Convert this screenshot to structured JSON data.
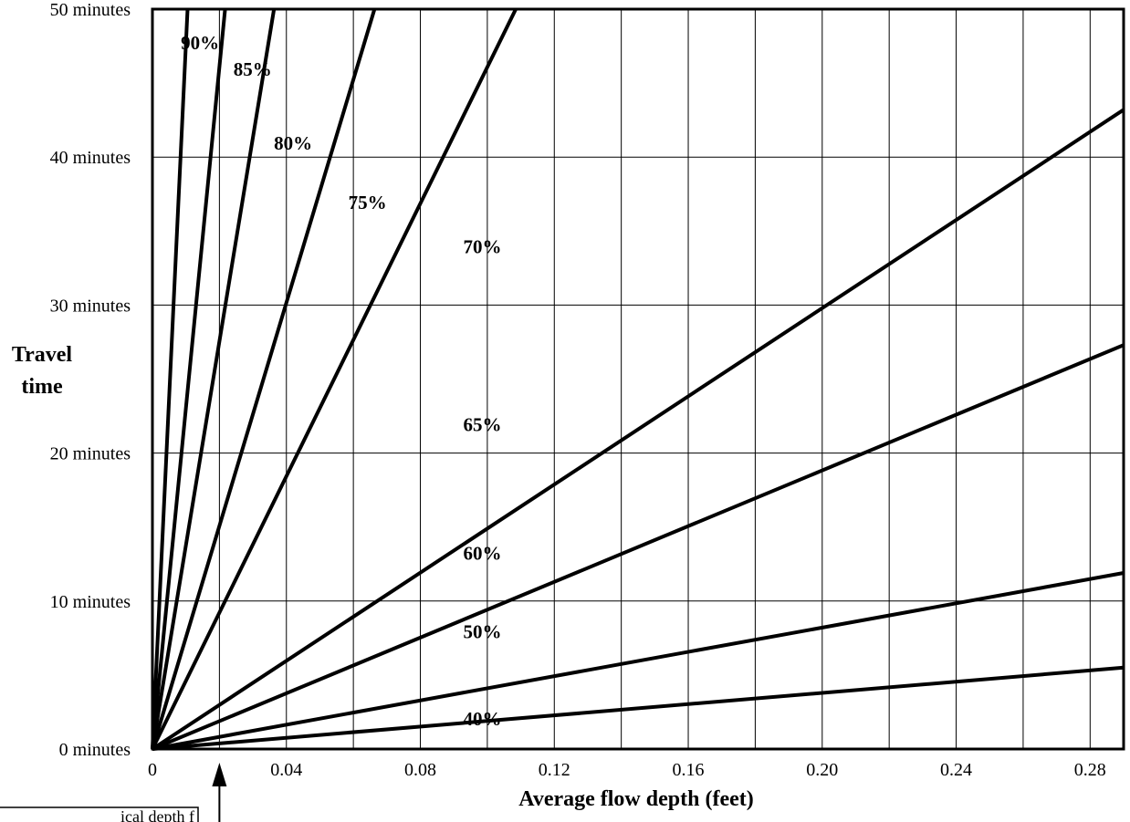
{
  "chart_data": {
    "type": "line",
    "xlabel": "Average flow depth  (feet)",
    "ylabel": [
      "Travel",
      "time"
    ],
    "xlim": [
      0,
      0.29
    ],
    "ylim": [
      0,
      50
    ],
    "x_ticks": [
      0,
      0.04,
      0.08,
      0.12,
      0.16,
      0.2,
      0.24,
      0.28
    ],
    "x_tick_labels": [
      "0",
      "0.04",
      "0.08",
      "0.12",
      "0.16",
      "0.20",
      "0.24",
      "0.28"
    ],
    "y_ticks": [
      0,
      10,
      20,
      30,
      40,
      50
    ],
    "y_tick_labels": [
      "0 minutes",
      "10 minutes",
      "20 minutes",
      "30 minutes",
      "40 minutes",
      "50 minutes"
    ],
    "x_minor_step": 0.02,
    "grid": true,
    "series": [
      {
        "name": "90%",
        "x": [
          0,
          0.0105
        ],
        "y": [
          0,
          50
        ]
      },
      {
        "name": "85%",
        "x": [
          0,
          0.0217
        ],
        "y": [
          0,
          50
        ]
      },
      {
        "name": "80%",
        "x": [
          0,
          0.0363
        ],
        "y": [
          0,
          50
        ]
      },
      {
        "name": "75%",
        "x": [
          0,
          0.0663
        ],
        "y": [
          0,
          50
        ]
      },
      {
        "name": "70%",
        "x": [
          0,
          0.1085
        ],
        "y": [
          0,
          50
        ]
      },
      {
        "name": "65%",
        "x": [
          0,
          0.29
        ],
        "y": [
          0,
          43.2
        ]
      },
      {
        "name": "60%",
        "x": [
          0,
          0.29
        ],
        "y": [
          0,
          27.3
        ]
      },
      {
        "name": "50%",
        "x": [
          0,
          0.29
        ],
        "y": [
          0,
          11.9
        ]
      },
      {
        "name": "40%",
        "x": [
          0,
          0.29
        ],
        "y": [
          0,
          5.5
        ]
      }
    ],
    "series_label_positions": [
      {
        "name": "90%",
        "x": 0.0085,
        "y": 47.3
      },
      {
        "name": "85%",
        "x": 0.0242,
        "y": 45.5
      },
      {
        "name": "80%",
        "x": 0.0363,
        "y": 40.5
      },
      {
        "name": "75%",
        "x": 0.0585,
        "y": 36.5
      },
      {
        "name": "70%",
        "x": 0.0928,
        "y": 33.5
      },
      {
        "name": "65%",
        "x": 0.0928,
        "y": 21.5
      },
      {
        "name": "60%",
        "x": 0.0928,
        "y": 12.8
      },
      {
        "name": "50%",
        "x": 0.0928,
        "y": 7.5
      },
      {
        "name": "40%",
        "x": 0.0928,
        "y": 1.6
      }
    ],
    "annotation": {
      "text": "ical depth f",
      "arrow_x": 0.02
    }
  }
}
